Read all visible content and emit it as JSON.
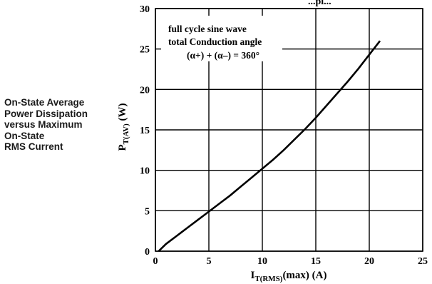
{
  "caption": {
    "lines": [
      "On-State Average",
      "Power Dissipation",
      "versus Maximum",
      "On-State",
      "RMS Current"
    ]
  },
  "header_fragment": "...pi...",
  "chart_data": {
    "type": "line",
    "title": "",
    "xlabel": "I_T(RMS)(max) (A)",
    "ylabel": "P_T(AV) (W)",
    "xlim": [
      0,
      25
    ],
    "ylim": [
      0,
      30
    ],
    "x_ticks": [
      0,
      5,
      10,
      15,
      20,
      25
    ],
    "y_ticks": [
      0,
      5,
      10,
      15,
      20,
      25,
      30
    ],
    "grid": true,
    "annotation": [
      "full cycle sine wave",
      "total Conduction angle",
      "(α+) + (α–) = 360°"
    ],
    "series": [
      {
        "x": [
          0.3,
          1,
          2,
          3,
          4,
          5,
          6,
          7,
          8,
          9,
          10,
          11,
          12,
          13,
          14,
          15,
          16,
          17,
          18,
          19,
          20,
          21
        ],
        "y": [
          0,
          0.9,
          1.9,
          2.9,
          3.9,
          4.9,
          5.9,
          6.9,
          8.0,
          9.1,
          10.2,
          11.3,
          12.5,
          13.8,
          15.1,
          16.5,
          18.0,
          19.5,
          21.0,
          22.6,
          24.3,
          26.0
        ],
        "color": "#000000"
      }
    ]
  }
}
